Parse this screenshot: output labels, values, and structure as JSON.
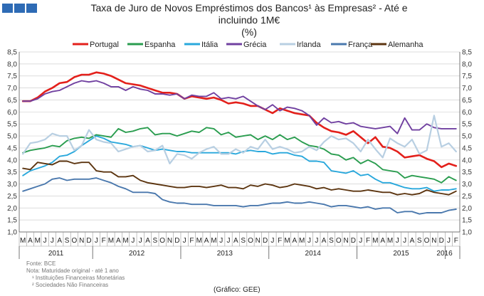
{
  "header": {
    "title_line1": "Taxa de Juro de Novos Empréstimos dos Bancos¹ às Empresas² - Até e",
    "title_line2": "incluindo 1M€",
    "unit": "(%)"
  },
  "footer": {
    "source": "Fonte: BCE",
    "note": "Nota: Maturidade original - até 1 ano",
    "footnote1": "¹ Instituições Financeiras Monetárias",
    "footnote2": "² Sociedades Não Financeiras",
    "credit": "(Gráfico: GEE)"
  },
  "colors": {
    "logo": "#2e6bb5",
    "grid": "#d0d0d0",
    "axis": "#555555"
  },
  "chart_data": {
    "type": "line",
    "ylim": [
      1.0,
      8.5
    ],
    "yticks": [
      "1,0",
      "1,5",
      "2,0",
      "2,5",
      "3,0",
      "3,5",
      "4,0",
      "4,5",
      "5,0",
      "5,5",
      "6,0",
      "6,5",
      "7,0",
      "7,5",
      "8,0",
      "8,5"
    ],
    "grid": true,
    "legend_position": "top",
    "month_labels": [
      "M",
      "A",
      "M",
      "J",
      "J",
      "A",
      "S",
      "O",
      "N",
      "D",
      "J",
      "F",
      "M",
      "A",
      "M",
      "J",
      "J",
      "A",
      "S",
      "O",
      "N",
      "D",
      "J",
      "F",
      "M",
      "A",
      "M",
      "J",
      "J",
      "A",
      "S",
      "O",
      "N",
      "D",
      "J",
      "F",
      "M",
      "A",
      "M",
      "J",
      "J",
      "A",
      "S",
      "O",
      "N",
      "D",
      "J",
      "F",
      "M",
      "A",
      "M",
      "J",
      "J",
      "A",
      "S",
      "O",
      "N",
      "D",
      "J",
      "F"
    ],
    "years": [
      {
        "label": "2011",
        "start": 0,
        "end": 9
      },
      {
        "label": "2012",
        "start": 10,
        "end": 21
      },
      {
        "label": "2013",
        "start": 22,
        "end": 33
      },
      {
        "label": "2014",
        "start": 34,
        "end": 45
      },
      {
        "label": "2015",
        "start": 46,
        "end": 57
      },
      {
        "label": "2016",
        "start": 58,
        "end": 59
      }
    ],
    "series": [
      {
        "name": "Portugal",
        "color": "#e3201b",
        "width": 2.6,
        "values": [
          6.45,
          6.45,
          6.6,
          6.85,
          7.0,
          7.2,
          7.25,
          7.45,
          7.55,
          7.55,
          7.65,
          7.6,
          7.5,
          7.35,
          7.2,
          7.15,
          7.1,
          7.0,
          6.9,
          6.8,
          6.8,
          6.75,
          6.55,
          6.65,
          6.6,
          6.55,
          6.6,
          6.5,
          6.35,
          6.4,
          6.35,
          6.25,
          6.25,
          6.1,
          5.95,
          6.15,
          6.05,
          5.95,
          5.9,
          5.85,
          5.55,
          5.35,
          5.2,
          5.15,
          5.05,
          5.2,
          4.95,
          4.7,
          4.95,
          4.55,
          4.5,
          4.35,
          4.1,
          4.15,
          4.2,
          4.05,
          3.95,
          3.7,
          3.85,
          3.75
        ]
      },
      {
        "name": "Espanha",
        "color": "#2a9d4f",
        "width": 1.9,
        "values": [
          4.3,
          4.4,
          4.45,
          4.5,
          4.6,
          4.55,
          4.8,
          4.9,
          4.95,
          4.9,
          5.05,
          5.0,
          4.95,
          5.3,
          5.15,
          5.2,
          5.3,
          5.35,
          5.05,
          5.1,
          5.1,
          5.0,
          5.1,
          5.2,
          5.15,
          5.35,
          5.3,
          5.05,
          5.15,
          4.95,
          5.0,
          5.05,
          4.85,
          5.0,
          4.85,
          5.05,
          4.85,
          4.95,
          4.75,
          4.6,
          4.55,
          4.45,
          4.25,
          4.2,
          4.0,
          4.1,
          3.85,
          4.0,
          3.85,
          3.6,
          3.55,
          3.5,
          3.25,
          3.35,
          3.3,
          3.25,
          3.2,
          3.05,
          3.3,
          3.15
        ]
      },
      {
        "name": "Itália",
        "color": "#29a8dc",
        "width": 1.9,
        "values": [
          3.35,
          3.55,
          3.65,
          3.75,
          3.9,
          4.15,
          4.2,
          4.35,
          4.6,
          4.8,
          5.0,
          4.9,
          4.75,
          4.7,
          4.65,
          4.55,
          4.6,
          4.5,
          4.4,
          4.45,
          4.4,
          4.35,
          4.35,
          4.3,
          4.3,
          4.3,
          4.3,
          4.3,
          4.3,
          4.25,
          4.35,
          4.4,
          4.35,
          4.35,
          4.25,
          4.3,
          4.3,
          4.2,
          4.15,
          3.95,
          3.95,
          3.9,
          3.55,
          3.5,
          3.45,
          3.55,
          3.35,
          3.4,
          3.2,
          3.05,
          3.05,
          2.95,
          2.85,
          2.8,
          2.8,
          2.85,
          2.7,
          2.75,
          2.75,
          2.8
        ]
      },
      {
        "name": "Grécia",
        "color": "#7040a0",
        "width": 1.9,
        "values": [
          6.45,
          6.45,
          6.55,
          6.75,
          6.85,
          6.9,
          7.05,
          7.2,
          7.3,
          7.25,
          7.3,
          7.2,
          7.05,
          7.05,
          6.9,
          7.05,
          6.95,
          6.9,
          6.75,
          6.75,
          6.7,
          6.75,
          6.55,
          6.7,
          6.65,
          6.65,
          6.8,
          6.55,
          6.6,
          6.55,
          6.65,
          6.45,
          6.25,
          6.1,
          6.3,
          6.05,
          6.2,
          6.15,
          6.05,
          5.85,
          5.45,
          5.75,
          5.55,
          5.6,
          5.5,
          5.55,
          5.4,
          5.35,
          5.3,
          5.35,
          5.4,
          5.1,
          5.75,
          5.25,
          5.25,
          5.5,
          5.35,
          5.3,
          5.3,
          5.3
        ]
      },
      {
        "name": "Irlanda",
        "color": "#b8cfe2",
        "width": 2.2,
        "values": [
          4.25,
          4.7,
          4.75,
          4.85,
          5.1,
          5.0,
          5.0,
          4.4,
          4.6,
          5.25,
          4.85,
          4.75,
          4.7,
          4.35,
          4.45,
          4.55,
          4.6,
          4.35,
          4.4,
          4.6,
          3.85,
          4.25,
          4.2,
          4.05,
          4.3,
          4.45,
          4.55,
          4.25,
          4.25,
          4.45,
          4.3,
          4.55,
          4.45,
          4.85,
          4.45,
          4.55,
          4.45,
          4.3,
          4.35,
          4.55,
          4.4,
          4.75,
          5.0,
          4.85,
          4.9,
          4.7,
          4.35,
          4.85,
          4.45,
          4.1,
          4.9,
          4.7,
          4.55,
          4.85,
          4.25,
          4.4,
          5.85,
          4.55,
          4.7,
          4.35
        ]
      },
      {
        "name": "França",
        "color": "#4a78ad",
        "width": 1.9,
        "values": [
          2.7,
          2.8,
          2.9,
          3.0,
          3.2,
          3.25,
          3.15,
          3.2,
          3.2,
          3.2,
          3.25,
          3.15,
          3.05,
          2.9,
          2.8,
          2.65,
          2.65,
          2.65,
          2.6,
          2.35,
          2.25,
          2.2,
          2.2,
          2.15,
          2.15,
          2.15,
          2.1,
          2.1,
          2.1,
          2.1,
          2.05,
          2.1,
          2.1,
          2.15,
          2.2,
          2.2,
          2.25,
          2.2,
          2.2,
          2.25,
          2.2,
          2.15,
          2.05,
          2.1,
          2.1,
          2.05,
          2.0,
          2.05,
          1.95,
          2.0,
          2.0,
          1.8,
          1.85,
          1.85,
          1.75,
          1.8,
          1.8,
          1.8,
          1.9,
          1.95
        ]
      },
      {
        "name": "Alemanha",
        "color": "#5c3510",
        "width": 1.9,
        "values": [
          3.65,
          3.6,
          3.9,
          3.85,
          3.8,
          3.95,
          3.95,
          3.85,
          3.9,
          3.9,
          3.55,
          3.5,
          3.5,
          3.3,
          3.3,
          3.35,
          3.15,
          3.05,
          3.0,
          2.95,
          2.9,
          2.85,
          2.85,
          2.9,
          2.9,
          2.85,
          2.9,
          2.95,
          2.85,
          2.85,
          2.8,
          2.95,
          2.9,
          3.0,
          2.95,
          2.85,
          2.9,
          3.0,
          2.95,
          2.9,
          2.8,
          2.85,
          2.75,
          2.8,
          2.75,
          2.7,
          2.7,
          2.75,
          2.7,
          2.65,
          2.65,
          2.55,
          2.6,
          2.55,
          2.6,
          2.75,
          2.65,
          2.6,
          2.55,
          2.7
        ]
      }
    ]
  }
}
